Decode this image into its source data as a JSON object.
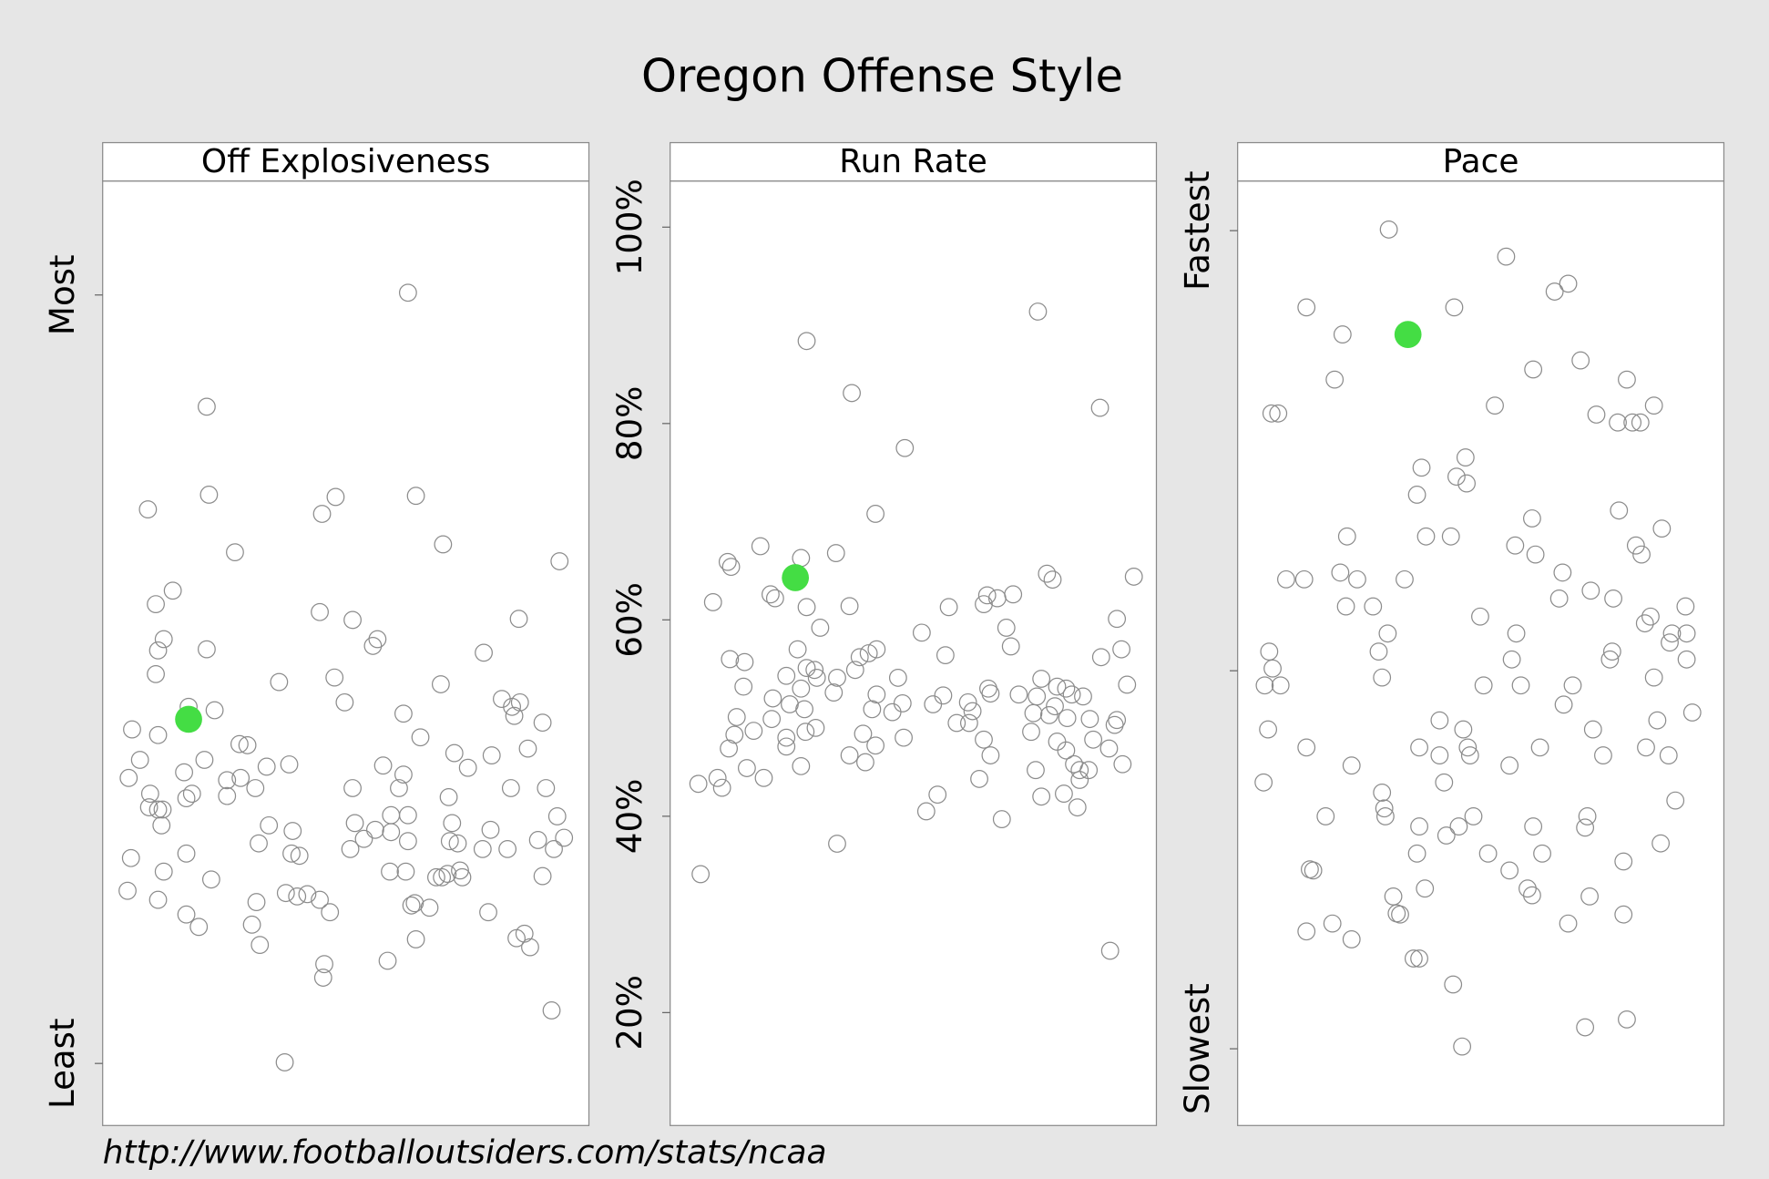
{
  "title": "Oregon Offense Style",
  "source": "http://www.footballoutsiders.com/stats/ncaa",
  "chart_data": [
    {
      "type": "scatter",
      "title": "Off Explosiveness",
      "xlim": [
        0,
        430
      ],
      "ylim": [
        0,
        837
      ],
      "yticks": [
        {
          "value": 55,
          "label": "Least"
        },
        {
          "value": 736,
          "label": "Most"
        }
      ],
      "series": [
        {
          "color": "#8c8c8c",
          "marker": "open",
          "x": [
            270,
            92,
            94,
            40,
            117,
            194,
            206,
            277,
            301,
            404,
            62,
            47,
            54,
            49,
            92,
            47,
            192,
            221,
            243,
            239,
            368,
            337,
            156,
            205,
            299,
            26,
            49,
            76,
            99,
            214,
            266,
            281,
            353,
            362,
            364,
            369,
            389,
            33,
            23,
            72,
            90,
            121,
            128,
            110,
            122,
            145,
            165,
            311,
            323,
            344,
            376,
            248,
            266,
            262,
            221,
            361,
            392,
            42,
            41,
            49,
            53,
            74,
            79,
            110,
            135,
            306,
            52,
            147,
            223,
            231,
            241,
            255,
            270,
            255,
            270,
            309,
            314,
            307,
            336,
            343,
            358,
            402,
            385,
            399,
            408,
            25,
            74,
            138,
            168,
            167,
            174,
            219,
            54,
            96,
            254,
            268,
            295,
            300,
            305,
            318,
            316,
            389,
            22,
            49,
            136,
            162,
            172,
            181,
            192,
            201,
            273,
            276,
            289,
            341,
            74,
            85,
            132,
            139,
            277,
            252,
            196,
            195,
            366,
            373,
            378,
            397,
            161
          ],
          "values": [
            738,
            637,
            559,
            546,
            508,
            542,
            557,
            558,
            515,
            500,
            474,
            462,
            431,
            421,
            422,
            400,
            455,
            448,
            431,
            425,
            449,
            419,
            393,
            397,
            391,
            351,
            346,
            371,
            368,
            375,
            365,
            344,
            378,
            371,
            363,
            375,
            357,
            324,
            308,
            313,
            324,
            338,
            337,
            306,
            308,
            318,
            320,
            330,
            317,
            328,
            334,
            319,
            311,
            299,
            299,
            299,
            299,
            294,
            282,
            280,
            280,
            290,
            294,
            292,
            299,
            291,
            266,
            266,
            268,
            254,
            262,
            275,
            275,
            260,
            252,
            268,
            250,
            252,
            245,
            262,
            245,
            274,
            253,
            245,
            255,
            237,
            241,
            250,
            261,
            241,
            239,
            245,
            225,
            218,
            225,
            225,
            220,
            220,
            223,
            220,
            226,
            221,
            208,
            200,
            198,
            206,
            203,
            205,
            200,
            189,
            195,
            197,
            193,
            189,
            187,
            176,
            178,
            160,
            165,
            146,
            143,
            131,
            166,
            170,
            158,
            102,
            56
          ]
        },
        {
          "color": "#44dd44",
          "marker": "filled",
          "x": [
            76
          ],
          "values": [
            360
          ]
        }
      ]
    },
    {
      "type": "scatter",
      "title": "Run Rate",
      "xlim": [
        0,
        431
      ],
      "ylim": [
        8.5,
        104.7
      ],
      "yticks": [
        {
          "value": 20,
          "label": "20%"
        },
        {
          "value": 40,
          "label": "40%"
        },
        {
          "value": 60,
          "label": "60%"
        },
        {
          "value": 80,
          "label": "80%"
        },
        {
          "value": 100,
          "label": "100%"
        }
      ],
      "series": [
        {
          "color": "#8c8c8c",
          "marker": "open",
          "x": [
            326,
            121,
            161,
            381,
            208,
            182,
            51,
            54,
            80,
            116,
            147,
            89,
            93,
            38,
            121,
            159,
            334,
            339,
            411,
            247,
            278,
            281,
            290,
            304,
            396,
            133,
            223,
            298,
            302,
            113,
            183,
            176,
            168,
            53,
            66,
            121,
            128,
            164,
            244,
            382,
            400,
            103,
            130,
            148,
            202,
            65,
            116,
            145,
            183,
            242,
            282,
            284,
            309,
            325,
            329,
            343,
            351,
            356,
            366,
            405,
            91,
            106,
            119,
            179,
            197,
            206,
            233,
            264,
            268,
            322,
            336,
            341,
            59,
            90,
            254,
            265,
            352,
            372,
            396,
            394,
            129,
            120,
            57,
            74,
            103,
            171,
            207,
            278,
            320,
            343,
            375,
            52,
            103,
            182,
            351,
            389,
            159,
            173,
            284,
            358,
            363,
            371,
            401,
            116,
            68,
            324,
            83,
            42,
            25,
            46,
            274,
            363,
            329,
            349,
            237,
            227,
            361,
            294,
            148,
            27,
            390
          ],
          "values": [
            91.4,
            88.4,
            83.1,
            81.6,
            77.5,
            70.8,
            65.9,
            65.4,
            67.5,
            66.3,
            66.8,
            62.6,
            62.2,
            61.8,
            61.3,
            61.4,
            64.7,
            64.1,
            64.4,
            61.3,
            61.6,
            62.5,
            62.2,
            62.6,
            60.1,
            59.2,
            58.7,
            59.2,
            57.3,
            57.0,
            57.0,
            56.6,
            56.2,
            56.0,
            55.7,
            55.1,
            54.9,
            54.9,
            56.4,
            56.2,
            57.0,
            54.3,
            54.1,
            54.1,
            54.1,
            53.2,
            53.0,
            52.6,
            52.4,
            52.3,
            53.0,
            52.5,
            52.4,
            52.2,
            54.0,
            53.2,
            53.0,
            52.4,
            52.2,
            53.4,
            52.0,
            51.4,
            50.9,
            50.9,
            50.6,
            51.5,
            51.4,
            51.6,
            50.7,
            50.5,
            50.3,
            51.2,
            50.1,
            49.9,
            49.5,
            49.5,
            50.0,
            49.9,
            49.8,
            49.3,
            49.0,
            48.6,
            48.3,
            48.7,
            48.0,
            48.4,
            48.0,
            47.8,
            48.6,
            47.6,
            47.8,
            46.9,
            47.1,
            47.2,
            46.7,
            46.9,
            46.2,
            45.5,
            46.2,
            45.3,
            44.7,
            44.7,
            45.3,
            45.1,
            44.9,
            44.7,
            43.9,
            43.9,
            43.3,
            42.9,
            43.8,
            43.7,
            42.0,
            42.3,
            42.2,
            40.5,
            40.9,
            39.7,
            37.2,
            34.1,
            26.3
          ]
        },
        {
          "color": "#44dd44",
          "marker": "filled",
          "x": [
            111
          ],
          "values": [
            64.3
          ]
        }
      ]
    },
    {
      "type": "scatter",
      "title": "Pace",
      "xlim": [
        0,
        431
      ],
      "ylim": [
        0,
        837
      ],
      "yticks": [
        {
          "value": 68,
          "label": "Slowest"
        },
        {
          "value": 403,
          "label": null
        },
        {
          "value": 793,
          "label": "Fastest"
        }
      ],
      "series": [
        {
          "color": "#8c8c8c",
          "marker": "open",
          "x": [
            134,
            238,
            293,
            281,
            61,
            192,
            93,
            304,
            262,
            86,
            345,
            228,
            369,
            30,
            36,
            318,
            337,
            350,
            357,
            202,
            163,
            194,
            203,
            159,
            338,
            261,
            376,
            97,
            167,
            189,
            246,
            353,
            358,
            264,
            91,
            43,
            59,
            106,
            148,
            288,
            313,
            285,
            333,
            96,
            120,
            397,
            215,
            366,
            361,
            133,
            247,
            385,
            398,
            383,
            28,
            125,
            332,
            330,
            243,
            398,
            31,
            128,
            369,
            24,
            38,
            218,
            251,
            297,
            289,
            403,
            179,
            372,
            27,
            200,
            315,
            204,
            61,
            161,
            268,
            362,
            179,
            206,
            324,
            382,
            101,
            241,
            183,
            23,
            128,
            388,
            130,
            131,
            78,
            209,
            310,
            161,
            196,
            262,
            308,
            185,
            375,
            222,
            270,
            159,
            342,
            64,
            67,
            241,
            257,
            261,
            166,
            138,
            312,
            141,
            144,
            342,
            84,
            293,
            61,
            101,
            156,
            161,
            191,
            345,
            308,
            199
          ],
          "values": [
            794,
            770,
            746,
            739,
            725,
            725,
            701,
            678,
            670,
            661,
            661,
            638,
            638,
            631,
            631,
            630,
            623,
            623,
            623,
            592,
            583,
            575,
            569,
            559,
            545,
            538,
            529,
            522,
            522,
            522,
            514,
            514,
            506,
            506,
            490,
            484,
            484,
            484,
            484,
            490,
            474,
            467,
            467,
            460,
            460,
            460,
            451,
            451,
            445,
            436,
            436,
            436,
            436,
            428,
            420,
            420,
            420,
            413,
            413,
            413,
            405,
            397,
            397,
            390,
            390,
            390,
            390,
            390,
            373,
            366,
            359,
            359,
            351,
            351,
            351,
            335,
            335,
            335,
            335,
            335,
            328,
            328,
            328,
            328,
            319,
            319,
            304,
            304,
            295,
            288,
            281,
            274,
            274,
            274,
            274,
            265,
            265,
            265,
            264,
            257,
            250,
            241,
            241,
            241,
            234,
            227,
            226,
            226,
            210,
            204,
            210,
            203,
            203,
            188,
            187,
            187,
            179,
            179,
            172,
            165,
            148,
            148,
            125,
            94,
            87,
            70
          ]
        },
        {
          "color": "#44dd44",
          "marker": "filled",
          "x": [
            151
          ],
          "values": [
            701
          ]
        }
      ]
    }
  ]
}
